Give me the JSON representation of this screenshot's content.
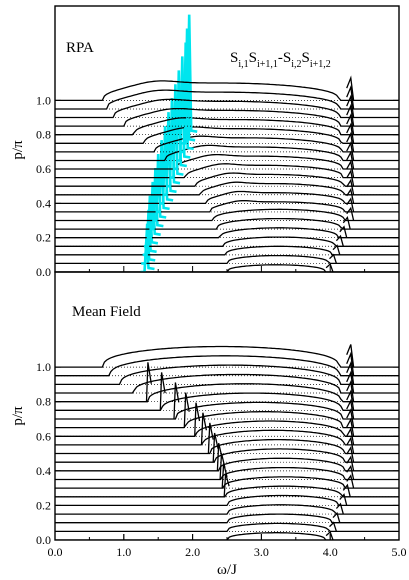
{
  "chart_data": [
    {
      "type": "line",
      "title": "RPA",
      "annotation": {
        "terms": [
          {
            "base": "S",
            "sub": "i,1"
          },
          {
            "base": "S",
            "sub": "i+1,1"
          },
          {
            "op": "-"
          },
          {
            "base": "S",
            "sub": "i,2"
          },
          {
            "base": "S",
            "sub": "i+1,2"
          }
        ]
      },
      "xlabel": "",
      "ylabel": "p/π",
      "xlim": [
        0.0,
        5.0
      ],
      "ylim": [
        0.0,
        1.55
      ],
      "yticks": [
        "0.0",
        "0.2",
        "0.4",
        "0.6",
        "0.8",
        "1.0"
      ],
      "grid": false,
      "series_description": "Stacked spectra, one curve per momentum p/π from 0.0 to 1.0 in steps of 0.05; curves offset vertically by p/π",
      "p_values": [
        0.0,
        0.05,
        0.1,
        0.15,
        0.2,
        0.25,
        0.3,
        0.35,
        0.4,
        0.45,
        0.5,
        0.55,
        0.6,
        0.65,
        0.7,
        0.75,
        0.8,
        0.85,
        0.9,
        0.95,
        1.0
      ],
      "continuum_lower_edge": [
        2.5,
        2.5,
        2.48,
        2.45,
        2.4,
        2.35,
        2.3,
        2.25,
        2.2,
        2.12,
        2.05,
        1.9,
        1.75,
        1.6,
        1.45,
        1.3,
        1.15,
        1.0,
        0.85,
        0.75,
        0.7
      ],
      "continuum_upper_edge": [
        4.0,
        4.05,
        4.1,
        4.15,
        4.2,
        4.25,
        4.3,
        4.3,
        4.3,
        4.3,
        4.3,
        4.3,
        4.3,
        4.3,
        4.3,
        4.3,
        4.3,
        4.3,
        4.3,
        4.3,
        4.3
      ],
      "bound_state_omega": [
        1.33,
        1.34,
        1.36,
        1.38,
        1.42,
        1.46,
        1.5,
        1.55,
        1.6,
        1.65,
        1.7,
        1.75,
        1.8,
        1.85,
        1.9,
        1.92,
        1.95,
        null,
        null,
        null,
        null
      ],
      "bound_state_color": "#00e5ee",
      "curve_color": "#000000"
    },
    {
      "type": "line",
      "title": "Mean Field",
      "xlabel": "ω/J",
      "ylabel": "p/π",
      "xlim": [
        0.0,
        5.0
      ],
      "ylim": [
        0.0,
        1.55
      ],
      "xticks": [
        "0.0",
        "1.0",
        "2.0",
        "3.0",
        "4.0",
        "5.0"
      ],
      "yticks": [
        "0.0",
        "0.2",
        "0.4",
        "0.6",
        "0.8",
        "1.0"
      ],
      "grid": false,
      "series_description": "Stacked mean-field spectra, one curve per momentum p/π from 0.0 to 1.0 in steps of 0.05",
      "p_values": [
        0.0,
        0.05,
        0.1,
        0.15,
        0.2,
        0.25,
        0.3,
        0.35,
        0.4,
        0.45,
        0.5,
        0.55,
        0.6,
        0.65,
        0.7,
        0.75,
        0.8,
        0.85,
        0.9,
        0.95,
        1.0
      ],
      "continuum_lower_edge": [
        2.5,
        2.5,
        2.5,
        2.5,
        2.5,
        2.48,
        2.45,
        2.42,
        2.38,
        2.32,
        2.25,
        2.15,
        2.05,
        1.9,
        1.75,
        1.55,
        1.35,
        1.15,
        0.95,
        0.8,
        0.7
      ],
      "continuum_upper_edge": [
        4.0,
        4.05,
        4.1,
        4.15,
        4.2,
        4.25,
        4.3,
        4.3,
        4.3,
        4.3,
        4.3,
        4.3,
        4.3,
        4.3,
        4.3,
        4.3,
        4.3,
        4.3,
        4.3,
        4.3,
        4.3
      ],
      "curve_color": "#000000"
    }
  ]
}
